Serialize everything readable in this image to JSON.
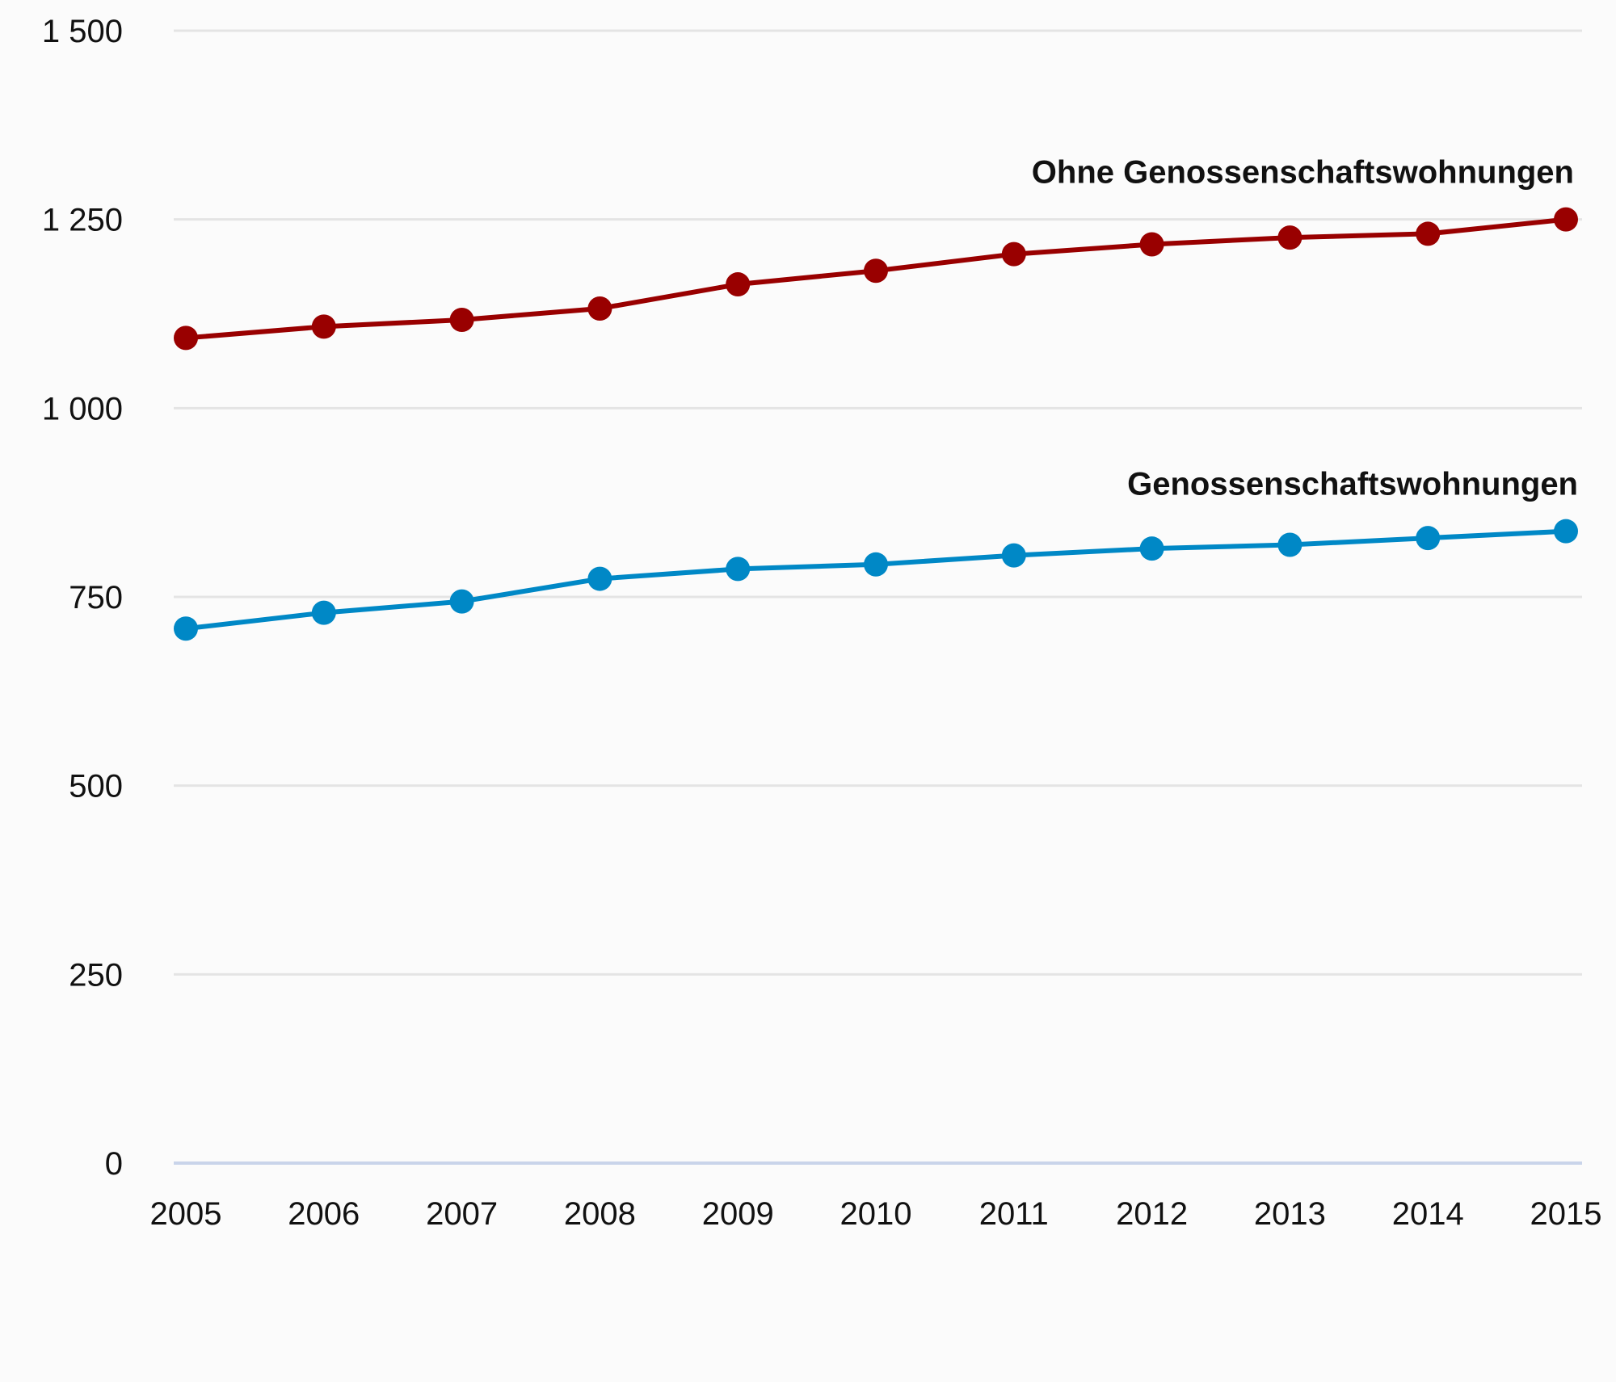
{
  "chart_data": {
    "type": "line",
    "title": "",
    "xlabel": "",
    "ylabel": "",
    "x": [
      "2005",
      "2006",
      "2007",
      "2008",
      "2009",
      "2010",
      "2011",
      "2012",
      "2013",
      "2014",
      "2015"
    ],
    "ylim": [
      0,
      1500
    ],
    "yticks": [
      0,
      250,
      500,
      750,
      1000,
      1250,
      1500
    ],
    "ytick_labels": [
      "0",
      "250",
      "500",
      "750",
      "1 000",
      "1 250",
      "1 500"
    ],
    "grid": true,
    "legend": "none",
    "series": [
      {
        "name": "Ohne Genossenschaftswohnungen",
        "color": "#990000",
        "values": [
          1093,
          1108,
          1117,
          1132,
          1164,
          1182,
          1204,
          1217,
          1226,
          1231,
          1250
        ]
      },
      {
        "name": "Genossenschaftswohnungen",
        "color": "#0088c6",
        "values": [
          708,
          729,
          744,
          774,
          787,
          793,
          805,
          814,
          819,
          828,
          837
        ]
      }
    ]
  }
}
